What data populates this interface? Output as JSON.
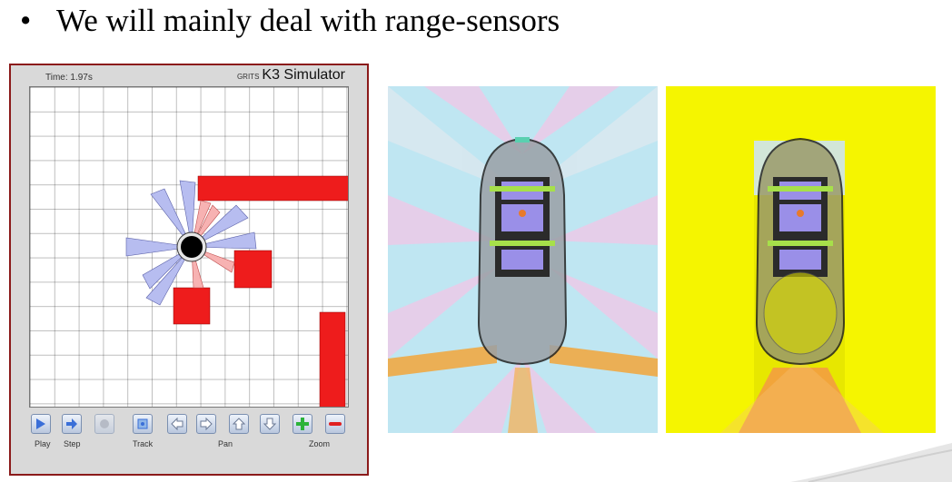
{
  "slide": {
    "bullet_symbol": "•",
    "bullet_text": "We will mainly deal with range-sensors"
  },
  "simulator": {
    "time": "Time: 1.97s",
    "brand": "GRITS",
    "title": "K3 Simulator",
    "labels": {
      "play": "Play",
      "step": "Step",
      "track": "Track",
      "pan": "Pan",
      "zoom": "Zoom"
    },
    "icons": [
      "play-icon",
      "step-icon",
      "record-icon",
      "track-icon",
      "pan-left-icon",
      "pan-right-icon",
      "pan-up-icon",
      "pan-down-icon",
      "zoom-in-icon",
      "zoom-out-icon"
    ],
    "colors": {
      "obstacle": "#ee1c1c",
      "sensor_clear": "#b7bdf0",
      "sensor_hit": "#f7b2b2",
      "robot": "#000000",
      "frame": "#8b1a1a"
    }
  },
  "images": {
    "car_sensor_coverage_blue": "car-top-view-sensor-coverage",
    "car_sensor_coverage_yellow": "car-top-view-sensor-coverage-yellow"
  }
}
